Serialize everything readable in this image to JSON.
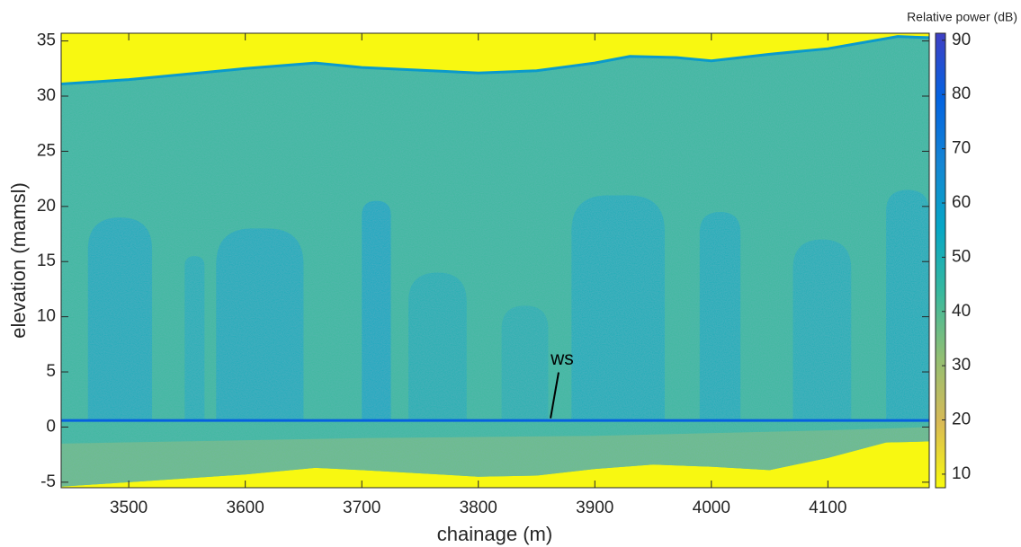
{
  "chart_data": {
    "type": "heatmap",
    "xlabel": "chainage (m)",
    "ylabel": "elevation (mamsl)",
    "colorbar_label": "Relative power (dB)",
    "xlim": [
      3442,
      4187
    ],
    "ylim": [
      -5.5,
      35.7
    ],
    "xticks": [
      3500,
      3600,
      3700,
      3800,
      3900,
      4000,
      4100
    ],
    "yticks": [
      -5,
      0,
      5,
      10,
      15,
      20,
      25,
      30,
      35
    ],
    "clim": [
      7.5,
      91.3
    ],
    "cticks": [
      10,
      20,
      30,
      40,
      50,
      60,
      70,
      80,
      90
    ],
    "colormap": [
      "#f9fb0e",
      "#d9ba56",
      "#92bf73",
      "#38b99e",
      "#06a7c6",
      "#1485d4",
      "#0363e1",
      "#3f3fc4"
    ],
    "background_value": 8,
    "surface": {
      "x": [
        3442,
        3500,
        3600,
        3660,
        3700,
        3800,
        3850,
        3900,
        3930,
        3970,
        4000,
        4050,
        4100,
        4160,
        4187
      ],
      "values": [
        31.1,
        31.5,
        32.5,
        33,
        32.6,
        32.1,
        32.3,
        33,
        33.6,
        33.5,
        33.2,
        33.8,
        34.3,
        35.4,
        35.3
      ],
      "value": 60
    },
    "body_value": 43,
    "bed": {
      "x": [
        3442,
        3500,
        3600,
        3660,
        3700,
        3800,
        3850,
        3900,
        3950,
        4000,
        4050,
        4100,
        4150,
        4187
      ],
      "values": [
        -5.4,
        -5,
        -4.3,
        -3.7,
        -3.9,
        -4.5,
        -4.4,
        -3.8,
        -3.4,
        -3.6,
        -3.9,
        -2.8,
        -1.4,
        -1.3
      ]
    },
    "sediment": {
      "x": [
        3442,
        3700,
        3900,
        4100,
        4187
      ],
      "values": [
        -1.5,
        -1,
        -0.8,
        -0.3,
        0
      ],
      "value": 34
    },
    "water_surface": {
      "elevation": 0.6,
      "value": 80
    },
    "zones": [
      {
        "x0": 3465,
        "x1": 3520,
        "top": 19,
        "value": 54
      },
      {
        "x0": 3548,
        "x1": 3565,
        "top": 15.5,
        "value": 52
      },
      {
        "x0": 3575,
        "x1": 3650,
        "top": 18,
        "value": 54
      },
      {
        "x0": 3700,
        "x1": 3725,
        "top": 20.5,
        "value": 56
      },
      {
        "x0": 3740,
        "x1": 3790,
        "top": 14,
        "value": 51
      },
      {
        "x0": 3820,
        "x1": 3860,
        "top": 11,
        "value": 50
      },
      {
        "x0": 3880,
        "x1": 3960,
        "top": 21,
        "value": 53
      },
      {
        "x0": 3990,
        "x1": 4025,
        "top": 19.5,
        "value": 53
      },
      {
        "x0": 4070,
        "x1": 4120,
        "top": 17,
        "value": 52
      },
      {
        "x0": 4150,
        "x1": 4187,
        "top": 21.5,
        "value": 53
      }
    ],
    "annotation": {
      "text": "ws",
      "x": 3872,
      "y": 6.1,
      "arrow_x": 3862,
      "arrow_y": 0.8
    }
  }
}
